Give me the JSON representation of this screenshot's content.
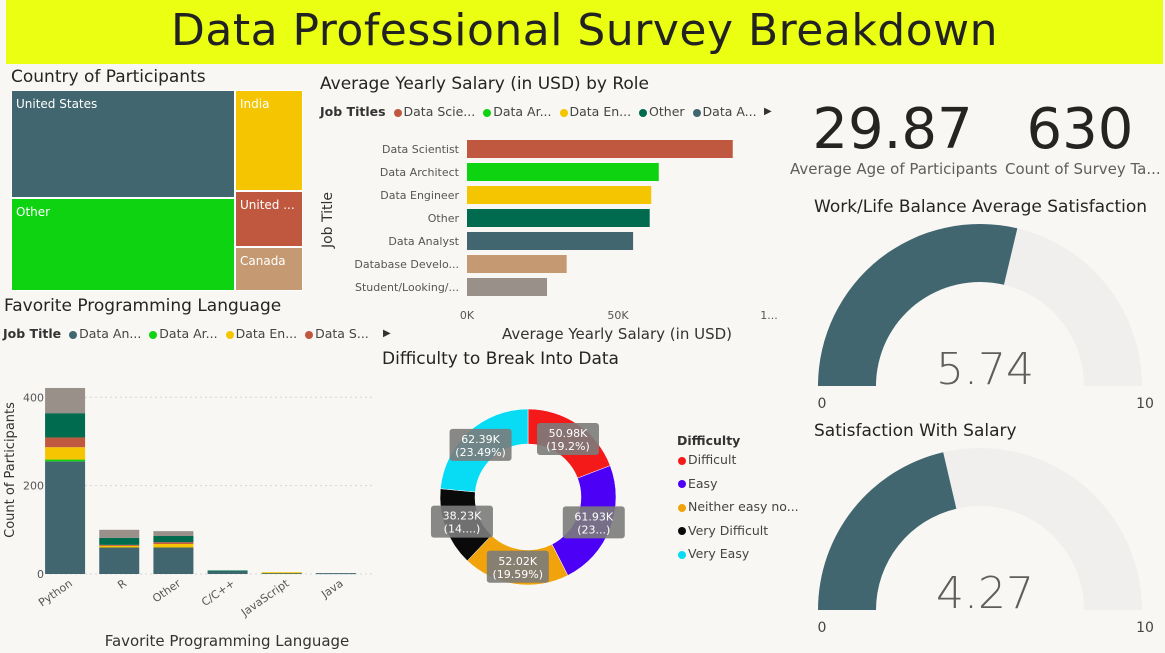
{
  "title": "Data Professional Survey Breakdown",
  "treemap": {
    "title": "Country of Participants",
    "tiles": [
      {
        "label": "United States",
        "color": "#41666f"
      },
      {
        "label": "Other",
        "color": "#0ed311"
      },
      {
        "label": "India",
        "color": "#f4c500"
      },
      {
        "label": "United ...",
        "color": "#c0583f"
      },
      {
        "label": "Canada",
        "color": "#c59a72"
      }
    ]
  },
  "salary_chart": {
    "title": "Average Yearly Salary (in USD) by Role",
    "legend_title": "Job Titles",
    "legend": [
      {
        "label": "Data Scie...",
        "color": "#c0583f"
      },
      {
        "label": "Data Ar...",
        "color": "#0ed311"
      },
      {
        "label": "Data En...",
        "color": "#f4c500"
      },
      {
        "label": "Other",
        "color": "#006b4f"
      },
      {
        "label": "Data A...",
        "color": "#41666f"
      }
    ],
    "ylabel": "Job Title",
    "xlabel": "Average Yearly Salary (in USD)",
    "xticks": [
      "0K",
      "50K",
      "1..."
    ]
  },
  "language_chart": {
    "title": "Favorite Programming Language",
    "legend_title": "Job Title",
    "legend": [
      {
        "label": "Data An...",
        "color": "#41666f"
      },
      {
        "label": "Data Ar...",
        "color": "#0ed311"
      },
      {
        "label": "Data En...",
        "color": "#f4c500"
      },
      {
        "label": "Data S...",
        "color": "#c0583f"
      }
    ],
    "ylabel": "Count of Participants",
    "xlabel": "Favorite Programming Language",
    "yticks": [
      "0",
      "200",
      "400"
    ]
  },
  "donut": {
    "title": "Difficulty to Break Into Data",
    "legend_title": "Difficulty",
    "legend": [
      {
        "label": "Difficult",
        "color": "#f41a1a"
      },
      {
        "label": "Easy",
        "color": "#4c00f5"
      },
      {
        "label": "Neither easy no...",
        "color": "#f0a30a"
      },
      {
        "label": "Very Difficult",
        "color": "#0a0a0a"
      },
      {
        "label": "Very Easy",
        "color": "#08dcf4"
      }
    ],
    "labels": [
      {
        "value": "50.98K",
        "pct": "(19.2%)"
      },
      {
        "value": "61.93K",
        "pct": "(23...)"
      },
      {
        "value": "52.02K",
        "pct": "(19.59%)"
      },
      {
        "value": "38.23K",
        "pct": "(14....)"
      },
      {
        "value": "62.39K",
        "pct": "(23.49%)"
      }
    ]
  },
  "cards": {
    "avg_age": {
      "value": "29.87",
      "label": "Average Age of Participants"
    },
    "count": {
      "value": "630",
      "label": "Count of Survey Ta..."
    }
  },
  "gauge_wlb": {
    "title": "Work/Life Balance Average Satisfaction",
    "value_text": "5.74",
    "min_label": "0",
    "max_label": "10",
    "value": 5.74,
    "min": 0,
    "max": 10
  },
  "gauge_salary": {
    "title": "Satisfaction With Salary",
    "value_text": "4.27",
    "min_label": "0",
    "max_label": "10",
    "value": 4.27,
    "min": 0,
    "max": 10
  },
  "colors": {
    "gauge_fill": "#41666f",
    "gauge_track": "#f0efed",
    "banner": "#ebff12"
  },
  "chart_data": [
    {
      "type": "bar",
      "orientation": "horizontal",
      "title": "Average Yearly Salary (in USD) by Role",
      "categories": [
        "Data Scientist",
        "Data Architect",
        "Data Engineer",
        "Other",
        "Data Analyst",
        "Database Develo...",
        "Student/Looking/..."
      ],
      "values": [
        88000,
        63500,
        61000,
        60500,
        55000,
        33000,
        26500
      ],
      "colors": [
        "#c0583f",
        "#0ed311",
        "#f4c500",
        "#006b4f",
        "#41666f",
        "#c59a72",
        "#999089"
      ],
      "xlabel": "Average Yearly Salary (in USD)",
      "ylabel": "Job Title",
      "xlim": [
        0,
        100000
      ]
    },
    {
      "type": "bar",
      "stacked": true,
      "title": "Favorite Programming Language",
      "categories": [
        "Python",
        "R",
        "Other",
        "C/C++",
        "JavaScript",
        "Java"
      ],
      "series": [
        {
          "name": "Data An...",
          "color": "#41666f",
          "values": [
            255,
            60,
            60,
            6,
            3,
            2
          ]
        },
        {
          "name": "Data Ar...",
          "color": "#0ed311",
          "values": [
            4,
            0,
            0,
            0,
            0,
            0
          ]
        },
        {
          "name": "Data En...",
          "color": "#f4c500",
          "values": [
            28,
            4,
            8,
            0,
            1,
            0
          ]
        },
        {
          "name": "Data S...",
          "color": "#c0583f",
          "values": [
            22,
            2,
            4,
            0,
            0,
            0
          ]
        },
        {
          "name": "",
          "color": "#006b4f",
          "values": [
            55,
            16,
            14,
            2,
            0,
            0
          ]
        },
        {
          "name": "",
          "color": "#999089",
          "values": [
            57,
            18,
            11,
            0,
            0,
            0
          ]
        }
      ],
      "xlabel": "Favorite Programming Language",
      "ylabel": "Count of Participants",
      "ylim": [
        0,
        430
      ]
    },
    {
      "type": "pie",
      "donut": true,
      "title": "Difficulty to Break Into Data",
      "categories": [
        "Difficult",
        "Easy",
        "Neither easy no...",
        "Very Difficult",
        "Very Easy"
      ],
      "values": [
        50.98,
        61.93,
        52.02,
        38.23,
        62.39
      ],
      "colors": [
        "#f41a1a",
        "#4c00f5",
        "#f0a30a",
        "#0a0a0a",
        "#08dcf4"
      ]
    }
  ]
}
